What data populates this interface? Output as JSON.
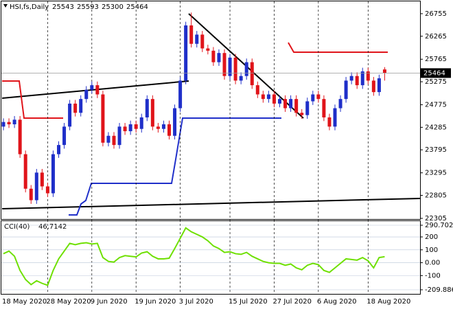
{
  "chart_data": [
    {
      "type": "candlestick",
      "title": "HSI,fs,Daily",
      "categories": [
        "18 May 2020",
        null,
        null,
        null,
        null,
        null,
        null,
        null,
        "28 May 2020",
        null,
        null,
        null,
        null,
        null,
        null,
        null,
        "9 Jun 2020",
        null,
        null,
        null,
        null,
        null,
        null,
        null,
        "19 Jun 2020",
        null,
        null,
        null,
        null,
        null,
        null,
        null,
        "3 Jul 2020",
        null,
        null,
        null,
        null,
        null,
        null,
        null,
        null,
        "15 Jul 2020",
        null,
        null,
        null,
        null,
        null,
        null,
        null,
        "27 Jul 2020",
        null,
        null,
        null,
        null,
        null,
        null,
        null,
        "6 Aug 2020",
        null,
        null,
        null,
        null,
        null,
        null,
        null,
        null,
        "18 Aug 2020",
        null,
        null,
        null
      ],
      "open": [
        24300,
        24400,
        24350,
        24450,
        23700,
        22950,
        22700,
        23300,
        23000,
        22850,
        23700,
        23900,
        24300,
        24800,
        24600,
        24900,
        25100,
        25200,
        25000,
        23950,
        24100,
        23900,
        24300,
        24200,
        24350,
        24250,
        24500,
        24900,
        24300,
        24250,
        24350,
        24100,
        24700,
        25300,
        26500,
        26100,
        26300,
        26000,
        25950,
        25700,
        25900,
        25400,
        25800,
        25300,
        25400,
        25700,
        25200,
        25000,
        24900,
        25000,
        24800,
        24900,
        24700,
        24900,
        24600,
        24550,
        24850,
        25000,
        24900,
        24500,
        24300,
        24700,
        24900,
        25300,
        25400,
        25200,
        25500,
        25300,
        25050,
        25543
      ],
      "high": [
        24480,
        24480,
        24530,
        24530,
        23780,
        23030,
        23380,
        23380,
        23080,
        23780,
        23980,
        24380,
        24880,
        24880,
        24980,
        25180,
        25280,
        25280,
        25080,
        24180,
        24180,
        24380,
        24380,
        24430,
        24430,
        24580,
        24980,
        24980,
        24380,
        24430,
        24430,
        24780,
        25380,
        26580,
        26780,
        26380,
        26380,
        26080,
        26030,
        25980,
        25980,
        25880,
        25880,
        25480,
        25780,
        25780,
        25280,
        25080,
        25080,
        25080,
        24980,
        24980,
        24980,
        24980,
        24680,
        24930,
        25080,
        25080,
        24980,
        24580,
        24780,
        24980,
        25380,
        25480,
        25480,
        25580,
        25580,
        25380,
        25430,
        25593
      ],
      "low": [
        24220,
        24270,
        24270,
        23620,
        22870,
        22620,
        22620,
        22920,
        22770,
        22770,
        23620,
        23820,
        24220,
        24520,
        24520,
        24820,
        25020,
        24920,
        23870,
        23870,
        23820,
        23820,
        24120,
        24120,
        24170,
        24170,
        24420,
        24220,
        24170,
        24170,
        24020,
        24020,
        24620,
        25220,
        26020,
        26020,
        25920,
        25870,
        25620,
        25620,
        25320,
        25320,
        25220,
        25220,
        25320,
        25120,
        24920,
        24820,
        24820,
        24720,
        24720,
        24620,
        24620,
        24520,
        24470,
        24470,
        24770,
        24820,
        24420,
        24220,
        24220,
        24620,
        24820,
        25220,
        25120,
        25120,
        25220,
        24970,
        24970,
        25300
      ],
      "close": [
        24400,
        24350,
        24450,
        23700,
        22950,
        22700,
        23300,
        23000,
        22850,
        23700,
        23900,
        24300,
        24800,
        24600,
        24900,
        25100,
        25200,
        25000,
        23950,
        24100,
        23900,
        24300,
        24200,
        24350,
        24250,
        24500,
        24900,
        24300,
        24250,
        24350,
        24100,
        24700,
        25300,
        26500,
        26100,
        26300,
        26000,
        25950,
        25700,
        25900,
        25400,
        25800,
        25300,
        25400,
        25700,
        25200,
        25000,
        24900,
        25000,
        24800,
        24900,
        24700,
        24900,
        24600,
        24550,
        24850,
        25000,
        24900,
        24500,
        24300,
        24700,
        24900,
        25300,
        25400,
        25200,
        25500,
        25300,
        25050,
        25350,
        25464
      ],
      "up_color": "#1f2fc9",
      "down_color": "#e0141a",
      "ylim": [
        22305,
        26978
      ],
      "yticks": [
        26755,
        26265,
        25765,
        25275,
        24775,
        24285,
        23795,
        23295,
        22805,
        22305
      ]
    },
    {
      "type": "line",
      "title": "CCI(40)",
      "color": "#6ee000",
      "values": [
        70,
        90,
        50,
        -60,
        -130,
        -170,
        -140,
        -160,
        -175,
        -60,
        30,
        90,
        150,
        140,
        150,
        155,
        145,
        150,
        40,
        10,
        5,
        40,
        55,
        50,
        45,
        75,
        85,
        50,
        30,
        30,
        35,
        110,
        190,
        270,
        240,
        220,
        200,
        170,
        130,
        110,
        80,
        85,
        70,
        65,
        80,
        50,
        30,
        10,
        0,
        -5,
        -5,
        -20,
        -10,
        -40,
        -55,
        -20,
        -5,
        -15,
        -60,
        -75,
        -40,
        -5,
        30,
        25,
        20,
        40,
        15,
        -40,
        40,
        46.7142
      ],
      "ylim": [
        -209.886,
        290.7027
      ],
      "yticks": [
        290.7027,
        200,
        100,
        {
          "value": 0,
          "label": "0.00"
        },
        -100,
        -209.886
      ]
    }
  ]
}
